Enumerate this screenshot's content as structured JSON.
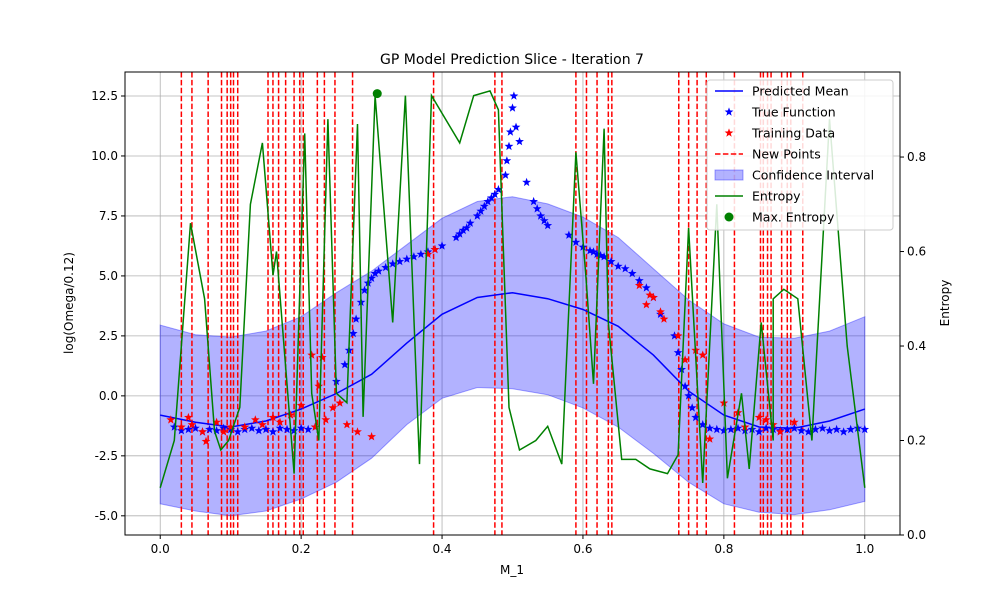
{
  "chart_data": {
    "type": "line",
    "title": "GP Model Prediction Slice - Iteration 7",
    "xlabel": "M_1",
    "ylabel": "log(Omega/0.12)",
    "y2label": "Entropy",
    "xlim": [
      -0.05,
      1.05
    ],
    "ylim": [
      -5.8,
      13.5
    ],
    "y2lim": [
      0.0,
      0.98
    ],
    "x_ticks": [
      "0.0",
      "0.2",
      "0.4",
      "0.6",
      "0.8",
      "1.0"
    ],
    "y_ticks": [
      "-5.0",
      "-2.5",
      "0.0",
      "2.5",
      "5.0",
      "7.5",
      "10.0",
      "12.5"
    ],
    "y2_ticks": [
      "0.0",
      "0.2",
      "0.4",
      "0.6",
      "0.8"
    ],
    "grid": true,
    "legend_position": "top-right",
    "legend": [
      "Predicted Mean",
      "True Function",
      "Training Data",
      "New Points",
      "Confidence Interval",
      "Entropy",
      "Max. Entropy"
    ],
    "colors": {
      "mean": "#0000ff",
      "true": "#0000ff",
      "training": "#ff0000",
      "new_points": "#ff0000",
      "ci_fill": "#0000ff",
      "entropy": "#008000",
      "max_entropy": "#008000"
    },
    "predicted_mean": {
      "x": [
        0.0,
        0.05,
        0.1,
        0.15,
        0.2,
        0.25,
        0.3,
        0.35,
        0.4,
        0.45,
        0.5,
        0.55,
        0.6,
        0.65,
        0.7,
        0.75,
        0.8,
        0.85,
        0.9,
        0.95,
        1.0
      ],
      "y": [
        -0.8,
        -1.1,
        -1.3,
        -1.05,
        -0.55,
        0.1,
        0.9,
        2.2,
        3.4,
        4.1,
        4.3,
        4.05,
        3.6,
        2.9,
        1.7,
        0.2,
        -0.8,
        -1.3,
        -1.35,
        -1.05,
        -0.55
      ]
    },
    "confidence_interval": {
      "x": [
        0.0,
        0.05,
        0.1,
        0.15,
        0.2,
        0.25,
        0.3,
        0.35,
        0.4,
        0.45,
        0.5,
        0.55,
        0.6,
        0.65,
        0.7,
        0.75,
        0.8,
        0.85,
        0.9,
        0.95,
        1.0
      ],
      "upper": [
        2.95,
        2.55,
        2.45,
        2.7,
        3.3,
        4.3,
        5.2,
        6.3,
        7.4,
        8.1,
        8.3,
        8.0,
        7.45,
        6.6,
        5.3,
        4.0,
        3.0,
        2.45,
        2.4,
        2.7,
        3.3
      ],
      "lower": [
        -4.5,
        -4.8,
        -5.0,
        -4.8,
        -4.3,
        -3.6,
        -2.6,
        -1.2,
        -0.1,
        0.35,
        0.3,
        0.05,
        -0.5,
        -1.3,
        -2.4,
        -3.6,
        -4.5,
        -4.85,
        -4.95,
        -4.75,
        -4.4
      ]
    },
    "true_function": {
      "x": [
        0.02,
        0.03,
        0.04,
        0.05,
        0.06,
        0.07,
        0.08,
        0.09,
        0.1,
        0.11,
        0.12,
        0.13,
        0.14,
        0.15,
        0.16,
        0.17,
        0.18,
        0.19,
        0.2,
        0.21,
        0.22,
        0.25,
        0.262,
        0.268,
        0.274,
        0.278,
        0.285,
        0.29,
        0.295,
        0.3,
        0.305,
        0.31,
        0.32,
        0.33,
        0.34,
        0.35,
        0.36,
        0.37,
        0.38,
        0.39,
        0.4,
        0.42,
        0.425,
        0.43,
        0.435,
        0.44,
        0.45,
        0.455,
        0.46,
        0.465,
        0.47,
        0.475,
        0.48,
        0.49,
        0.492,
        0.495,
        0.497,
        0.5,
        0.502,
        0.505,
        0.51,
        0.52,
        0.53,
        0.535,
        0.54,
        0.545,
        0.55,
        0.58,
        0.59,
        0.6,
        0.61,
        0.615,
        0.62,
        0.625,
        0.63,
        0.64,
        0.65,
        0.66,
        0.67,
        0.68,
        0.69,
        0.7,
        0.71,
        0.73,
        0.735,
        0.74,
        0.745,
        0.75,
        0.755,
        0.76,
        0.77,
        0.78,
        0.79,
        0.8,
        0.81,
        0.82,
        0.83,
        0.84,
        0.85,
        0.86,
        0.87,
        0.88,
        0.89,
        0.9,
        0.91,
        0.92,
        0.93,
        0.94,
        0.95,
        0.96,
        0.97,
        0.98,
        0.99,
        1.0
      ],
      "y": [
        -1.3,
        -1.45,
        -1.4,
        -1.35,
        -1.5,
        -1.4,
        -1.45,
        -1.35,
        -1.4,
        -1.5,
        -1.4,
        -1.35,
        -1.45,
        -1.4,
        -1.5,
        -1.35,
        -1.4,
        -1.45,
        -1.35,
        -1.4,
        -1.3,
        0.6,
        1.3,
        1.9,
        2.6,
        3.2,
        3.9,
        4.4,
        4.7,
        4.9,
        5.1,
        5.2,
        5.35,
        5.5,
        5.6,
        5.7,
        5.8,
        5.9,
        6.0,
        6.1,
        6.25,
        6.6,
        6.75,
        6.9,
        7.0,
        7.2,
        7.5,
        7.7,
        7.9,
        8.1,
        8.25,
        8.4,
        8.6,
        9.2,
        9.8,
        10.4,
        11.0,
        12.0,
        12.5,
        11.2,
        10.6,
        8.9,
        8.1,
        7.8,
        7.5,
        7.3,
        7.1,
        6.7,
        6.4,
        6.2,
        6.05,
        6.0,
        5.9,
        5.85,
        5.8,
        5.6,
        5.4,
        5.3,
        5.1,
        4.8,
        4.5,
        4.1,
        3.4,
        2.5,
        1.8,
        1.1,
        0.4,
        0.0,
        -0.5,
        -0.9,
        -1.2,
        -1.35,
        -1.4,
        -1.45,
        -1.4,
        -1.35,
        -1.45,
        -1.4,
        -1.5,
        -1.35,
        -1.4,
        -1.45,
        -1.4,
        -1.35,
        -1.45,
        -1.5,
        -1.4,
        -1.35,
        -1.45,
        -1.4,
        -1.5,
        -1.4,
        -1.35,
        -1.4
      ]
    },
    "training_data": {
      "x": [
        0.015,
        0.03,
        0.04,
        0.045,
        0.06,
        0.065,
        0.08,
        0.09,
        0.1,
        0.12,
        0.135,
        0.145,
        0.16,
        0.17,
        0.185,
        0.2,
        0.215,
        0.22,
        0.225,
        0.23,
        0.235,
        0.245,
        0.255,
        0.265,
        0.28,
        0.3,
        0.38,
        0.39,
        0.68,
        0.69,
        0.695,
        0.7,
        0.71,
        0.715,
        0.735,
        0.745,
        0.76,
        0.77,
        0.78,
        0.8,
        0.82,
        0.83,
        0.85,
        0.86,
        0.87,
        0.88,
        0.9
      ],
      "y": [
        -1.0,
        -1.3,
        -0.9,
        -1.2,
        -1.5,
        -1.9,
        -1.1,
        -1.5,
        -1.3,
        -1.3,
        -1.0,
        -1.2,
        -0.9,
        -1.1,
        -0.8,
        -0.4,
        1.7,
        -1.3,
        0.4,
        1.6,
        -1.0,
        -0.5,
        -0.3,
        -1.2,
        -1.5,
        -1.7,
        5.9,
        6.1,
        4.6,
        3.8,
        4.2,
        4.1,
        3.5,
        3.2,
        2.5,
        1.5,
        1.9,
        1.7,
        -1.8,
        -0.3,
        -0.7,
        -1.3,
        -0.9,
        -1.0,
        -1.2,
        -1.5,
        -1.1
      ]
    },
    "new_points_x": [
      0.03,
      0.045,
      0.068,
      0.087,
      0.095,
      0.1,
      0.104,
      0.11,
      0.153,
      0.16,
      0.168,
      0.178,
      0.19,
      0.198,
      0.203,
      0.223,
      0.233,
      0.248,
      0.273,
      0.388,
      0.475,
      0.485,
      0.59,
      0.605,
      0.62,
      0.636,
      0.641,
      0.736,
      0.75,
      0.762,
      0.775,
      0.815,
      0.852,
      0.856,
      0.862,
      0.867,
      0.882,
      0.89,
      0.895,
      0.912
    ],
    "entropy": {
      "x": [
        0.0,
        0.02,
        0.043,
        0.063,
        0.077,
        0.086,
        0.097,
        0.113,
        0.128,
        0.145,
        0.16,
        0.165,
        0.19,
        0.205,
        0.215,
        0.225,
        0.238,
        0.25,
        0.265,
        0.28,
        0.288,
        0.305,
        0.33,
        0.348,
        0.368,
        0.385,
        0.425,
        0.445,
        0.468,
        0.48,
        0.495,
        0.51,
        0.533,
        0.55,
        0.57,
        0.59,
        0.604,
        0.615,
        0.63,
        0.636,
        0.655,
        0.675,
        0.695,
        0.72,
        0.735,
        0.75,
        0.77,
        0.79,
        0.805,
        0.825,
        0.836,
        0.853,
        0.87,
        0.87,
        0.885,
        0.905,
        0.925,
        0.95,
        0.975,
        1.0
      ],
      "y": [
        0.1,
        0.2,
        0.66,
        0.5,
        0.22,
        0.18,
        0.2,
        0.27,
        0.7,
        0.83,
        0.55,
        0.6,
        0.13,
        0.85,
        0.3,
        0.2,
        0.88,
        0.3,
        0.28,
        0.87,
        0.25,
        0.93,
        0.45,
        0.93,
        0.15,
        0.93,
        0.83,
        0.93,
        0.94,
        0.9,
        0.27,
        0.18,
        0.2,
        0.23,
        0.15,
        0.81,
        0.55,
        0.32,
        0.86,
        0.45,
        0.16,
        0.16,
        0.14,
        0.13,
        0.17,
        0.65,
        0.11,
        0.7,
        0.12,
        0.3,
        0.14,
        0.45,
        0.2,
        0.5,
        0.52,
        0.5,
        0.2,
        0.88,
        0.4,
        0.1
      ]
    },
    "max_entropy": {
      "x": 0.308,
      "y": 12.6
    }
  }
}
